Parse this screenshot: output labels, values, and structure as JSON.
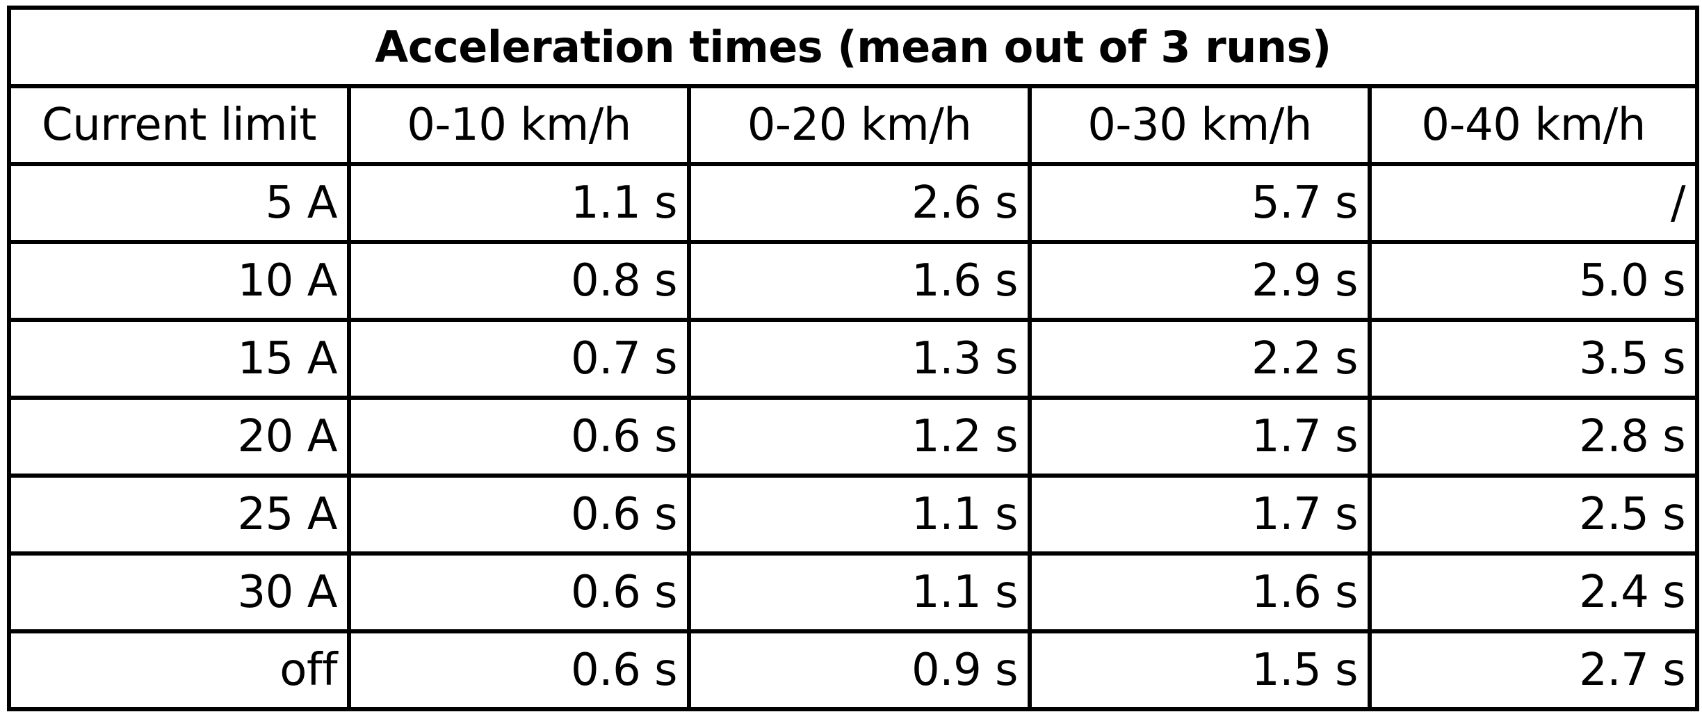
{
  "table": {
    "title": "Acceleration times (mean out of 3 runs)",
    "headers": [
      "Current limit",
      "0-10 km/h",
      "0-20 km/h",
      "0-30 km/h",
      "0-40 km/h"
    ],
    "rows": [
      [
        "5 A",
        "1.1 s",
        "2.6 s",
        "5.7 s",
        "/"
      ],
      [
        "10 A",
        "0.8 s",
        "1.6 s",
        "2.9 s",
        "5.0 s"
      ],
      [
        "15 A",
        "0.7 s",
        "1.3 s",
        "2.2 s",
        "3.5 s"
      ],
      [
        "20 A",
        "0.6 s",
        "1.2 s",
        "1.7 s",
        "2.8 s"
      ],
      [
        "25 A",
        "0.6 s",
        "1.1 s",
        "1.7 s",
        "2.5 s"
      ],
      [
        "30 A",
        "0.6 s",
        "1.1 s",
        "1.6 s",
        "2.4 s"
      ],
      [
        "off",
        "0.6 s",
        "0.9 s",
        "1.5 s",
        "2.7 s"
      ]
    ]
  }
}
